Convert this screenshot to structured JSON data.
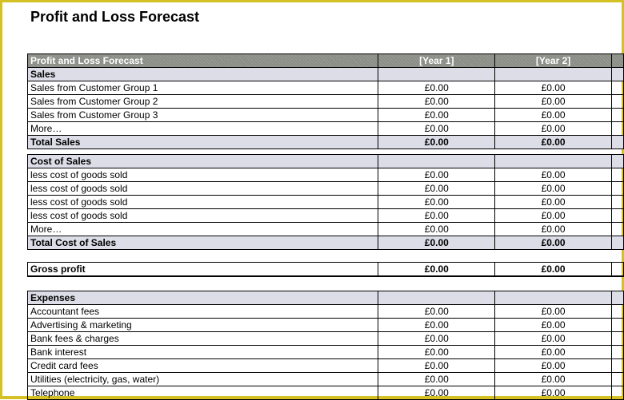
{
  "page": {
    "title": "Profit and Loss Forecast"
  },
  "table": {
    "header": {
      "label": "Profit and Loss Forecast",
      "year1": "[Year 1]",
      "year2": "[Year 2]"
    },
    "sales": {
      "heading": "Sales",
      "rows": [
        {
          "label": "Sales from Customer Group 1",
          "y1": "£0.00",
          "y2": "£0.00"
        },
        {
          "label": "Sales from Customer Group 2",
          "y1": "£0.00",
          "y2": "£0.00"
        },
        {
          "label": "Sales from Customer Group 3",
          "y1": "£0.00",
          "y2": "£0.00"
        },
        {
          "label": "More…",
          "y1": "£0.00",
          "y2": "£0.00"
        }
      ],
      "total": {
        "label": "Total Sales",
        "y1": "£0.00",
        "y2": "£0.00"
      }
    },
    "cost_of_sales": {
      "heading": "Cost of Sales",
      "rows": [
        {
          "label": "less cost of goods sold",
          "y1": "£0.00",
          "y2": "£0.00"
        },
        {
          "label": "less cost of goods sold",
          "y1": "£0.00",
          "y2": "£0.00"
        },
        {
          "label": "less cost of goods sold",
          "y1": "£0.00",
          "y2": "£0.00"
        },
        {
          "label": "less cost of goods sold",
          "y1": "£0.00",
          "y2": "£0.00"
        },
        {
          "label": "More…",
          "y1": "£0.00",
          "y2": "£0.00"
        }
      ],
      "total": {
        "label": "Total Cost of Sales",
        "y1": "£0.00",
        "y2": "£0.00"
      }
    },
    "gross_profit": {
      "label": "Gross profit",
      "y1": "£0.00",
      "y2": "£0.00"
    },
    "expenses": {
      "heading": "Expenses",
      "rows": [
        {
          "label": "Accountant fees",
          "y1": "£0.00",
          "y2": "£0.00"
        },
        {
          "label": "Advertising & marketing",
          "y1": "£0.00",
          "y2": "£0.00"
        },
        {
          "label": "Bank fees & charges",
          "y1": "£0.00",
          "y2": "£0.00"
        },
        {
          "label": "Bank interest",
          "y1": "£0.00",
          "y2": "£0.00"
        },
        {
          "label": "Credit card fees",
          "y1": "£0.00",
          "y2": "£0.00"
        },
        {
          "label": "Utilities (electricity, gas, water)",
          "y1": "£0.00",
          "y2": "£0.00"
        },
        {
          "label": "Telephone",
          "y1": "£0.00",
          "y2": "£0.00"
        }
      ]
    }
  }
}
